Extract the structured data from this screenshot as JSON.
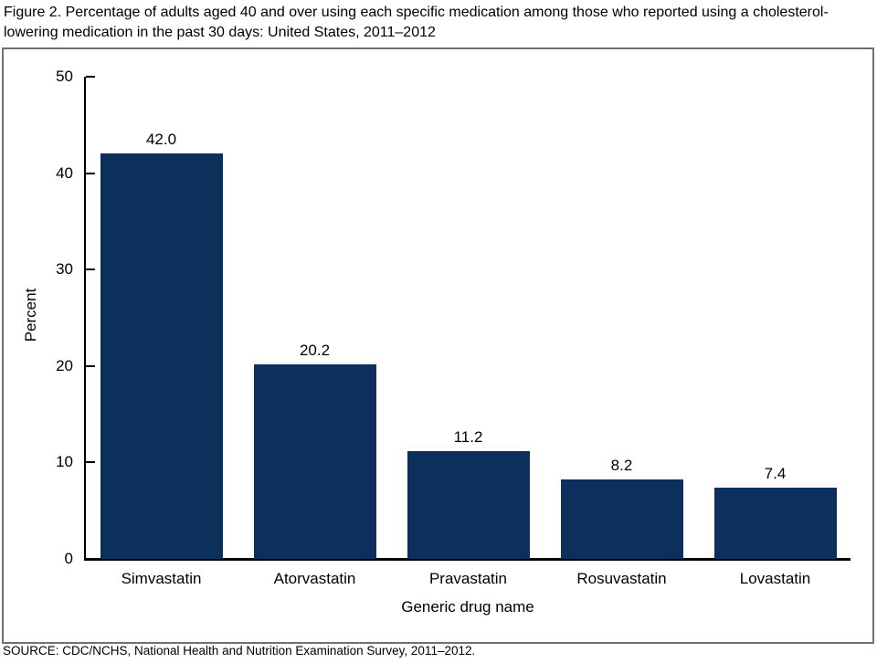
{
  "figure_title": "Figure 2. Percentage of adults aged 40 and over using each specific medication among those who reported using a cholesterol-lowering medication in the past 30 days: United States, 2011–2012",
  "source_note": "SOURCE: CDC/NCHS, National Health and Nutrition Examination Survey, 2011–2012.",
  "chart_data": {
    "type": "bar",
    "title": "Percentage of adults aged 40 and over using each specific medication among those who reported using a cholesterol-lowering medication in the past 30 days: United States, 2011–2012",
    "categories": [
      "Simvastatin",
      "Atorvastatin",
      "Pravastatin",
      "Rosuvastatin",
      "Lovastatin"
    ],
    "values": [
      42.0,
      20.2,
      11.2,
      8.2,
      7.4
    ],
    "value_labels": [
      "42.0",
      "20.2",
      "11.2",
      "8.2",
      "7.4"
    ],
    "xlabel": "Generic drug name",
    "ylabel": "Percent",
    "ylim": [
      0,
      50
    ],
    "yticks": [
      0,
      10,
      20,
      30,
      40,
      50
    ],
    "grid": false,
    "legend": false,
    "bar_color": "#0D2F5C",
    "axis_color": "#000000",
    "frame_color": "#707070",
    "text_color": "#000000"
  }
}
